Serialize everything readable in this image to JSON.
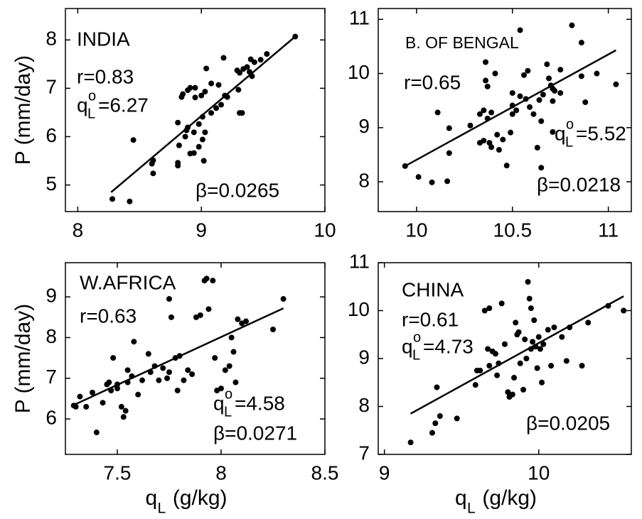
{
  "chart_data": [
    {
      "type": "scatter",
      "title": "INDIA",
      "r_text": "r=0.83",
      "q_text": {
        "base": "q",
        "sup": "o",
        "sub": "L",
        "value": "=6.27"
      },
      "beta_text": "β=0.0265",
      "ylabel": "P (mm/day)",
      "color": "#000000",
      "xlim": [
        7.9,
        10
      ],
      "xticks": [
        8,
        9,
        10
      ],
      "ylim": [
        4.45,
        8.65
      ],
      "yticks": [
        5,
        6,
        7,
        8
      ],
      "x": [
        9.76,
        9.53,
        9.48,
        9.43,
        9.4,
        9.37,
        9.34,
        9.31,
        9.39,
        9.41,
        9.29,
        9.18,
        9.04,
        9.08,
        9.14,
        9.03,
        9.0,
        8.95,
        8.91,
        8.89,
        8.85,
        8.84,
        8.95,
        9.16,
        9.3,
        9.19,
        9.21,
        9.31,
        9.33,
        9.12,
        9.08,
        9.01,
        8.98,
        8.89,
        8.88,
        8.81,
        8.82,
        8.87,
        8.94,
        9.01,
        9.03,
        8.91,
        8.94,
        8.98,
        8.81,
        8.81,
        9.02,
        8.61,
        8.61,
        8.6,
        8.45,
        8.28,
        8.42
      ],
      "values": [
        8.07,
        7.71,
        7.59,
        7.54,
        7.6,
        7.44,
        7.4,
        7.32,
        7.34,
        7.25,
        7.37,
        7.63,
        7.41,
        7.1,
        7.07,
        6.93,
        6.85,
        7.01,
        7.01,
        6.96,
        6.88,
        6.82,
        6.81,
        6.66,
        6.97,
        6.85,
        6.82,
        6.49,
        6.49,
        6.59,
        6.49,
        6.41,
        6.26,
        6.19,
        6.13,
        6.29,
        5.82,
        6.0,
        6.09,
        5.94,
        6.09,
        5.65,
        5.66,
        5.79,
        5.46,
        5.4,
        5.5,
        5.24,
        5.51,
        5.44,
        5.93,
        4.71,
        4.66
      ],
      "fit": {
        "x": [
          8.27,
          9.76
        ],
        "values": [
          4.85,
          8.07
        ]
      }
    },
    {
      "type": "scatter",
      "title": "B. OF BENGAL",
      "r_text": "r=0.65",
      "q_text": {
        "base": "q",
        "sup": "o",
        "sub": "L",
        "value": "=5.52"
      },
      "beta_text": "β=0.0218",
      "color": "#000000",
      "xlim": [
        9.8,
        11.12
      ],
      "xticks": [
        10,
        10.5,
        11
      ],
      "ylim": [
        7.45,
        11.2
      ],
      "yticks": [
        8,
        9,
        10,
        11
      ],
      "x": [
        9.94,
        10.01,
        10.08,
        10.16,
        10.11,
        10.17,
        10.17,
        10.28,
        10.33,
        10.36,
        10.36,
        10.37,
        10.41,
        10.35,
        10.37,
        10.39,
        10.33,
        10.35,
        10.38,
        10.39,
        10.42,
        10.43,
        10.45,
        10.47,
        10.49,
        10.5,
        10.5,
        10.52,
        10.5,
        10.54,
        10.57,
        10.54,
        10.56,
        10.58,
        10.59,
        10.61,
        10.63,
        10.64,
        10.65,
        10.66,
        10.68,
        10.69,
        10.7,
        10.71,
        10.72,
        10.71,
        10.65,
        10.71,
        10.75,
        10.75,
        10.81,
        10.86,
        10.86,
        10.88,
        10.94,
        11.04
      ],
      "values": [
        8.29,
        8.09,
        7.99,
        8.01,
        9.28,
        8.99,
        8.53,
        9.04,
        9.25,
        10.21,
        9.87,
        9.76,
        10.0,
        9.32,
        9.17,
        9.28,
        8.72,
        8.76,
        8.72,
        8.64,
        8.87,
        8.59,
        8.78,
        8.3,
        8.91,
        9.25,
        9.41,
        9.32,
        9.64,
        9.58,
        9.53,
        10.8,
        9.97,
        10.05,
        9.38,
        9.25,
        8.63,
        9.51,
        9.12,
        9.61,
        10.17,
        9.91,
        9.78,
        9.72,
        9.68,
        9.49,
        8.26,
        8.92,
        10.07,
        9.64,
        10.89,
        10.57,
        9.95,
        9.47,
        10.0,
        9.8
      ],
      "fit": {
        "x": [
          9.94,
          11.04
        ],
        "values": [
          8.29,
          10.43
        ]
      }
    },
    {
      "type": "scatter",
      "title": "W.AFRICA",
      "r_text": "r=0.63",
      "q_text": {
        "base": "q",
        "sup": "o",
        "sub": "L",
        "value": "=4.58"
      },
      "beta_text": "β=0.0271",
      "ylabel": "P (mm/day)",
      "xlabel": {
        "base": "q",
        "sub": "L",
        "text": " (g/kg)"
      },
      "color": "#000000",
      "xlim": [
        7.25,
        8.5
      ],
      "xticks": [
        7.5,
        8,
        8.5
      ],
      "ylim": [
        5.13,
        9.84
      ],
      "yticks": [
        6,
        7,
        8,
        9
      ],
      "x": [
        7.3,
        7.29,
        7.32,
        7.35,
        7.38,
        7.4,
        7.43,
        7.45,
        7.46,
        7.47,
        7.48,
        7.5,
        7.5,
        7.52,
        7.53,
        7.54,
        7.55,
        7.55,
        7.57,
        7.58,
        7.6,
        7.62,
        7.65,
        7.66,
        7.68,
        7.7,
        7.72,
        7.74,
        7.75,
        7.75,
        7.76,
        7.78,
        7.79,
        7.8,
        7.82,
        7.84,
        7.86,
        7.88,
        7.9,
        7.92,
        7.93,
        7.94,
        7.96,
        7.97,
        7.98,
        8.0,
        8.02,
        8.04,
        8.05,
        8.06,
        8.07,
        8.08,
        8.1,
        8.12,
        8.25,
        8.3
      ],
      "values": [
        6.3,
        6.33,
        6.55,
        6.3,
        6.65,
        5.67,
        6.4,
        6.85,
        6.9,
        6.7,
        7.5,
        6.75,
        6.85,
        6.3,
        6.05,
        6.2,
        6.9,
        7.2,
        7.05,
        7.9,
        6.6,
        6.95,
        7.6,
        7.15,
        7.3,
        6.95,
        7.25,
        7.0,
        7.15,
        8.95,
        8.5,
        7.5,
        6.7,
        7.55,
        6.95,
        7.2,
        7.1,
        8.5,
        8.55,
        9.4,
        9.45,
        8.7,
        9.4,
        7.5,
        6.7,
        6.75,
        7.2,
        7.3,
        8.0,
        7.65,
        6.9,
        8.45,
        8.35,
        8.4,
        8.2,
        8.95
      ],
      "fit": {
        "x": [
          7.28,
          8.3
        ],
        "values": [
          6.32,
          8.72
        ]
      }
    },
    {
      "type": "scatter",
      "title": "CHINA",
      "r_text": "r=0.61",
      "q_text": {
        "base": "q",
        "sup": "o",
        "sub": "L",
        "value": "=4.73"
      },
      "beta_text": "β=0.0205",
      "xlabel": {
        "base": "q",
        "sub": "L",
        "text": " (g/kg)"
      },
      "color": "#000000",
      "xlim": [
        8.96,
        10.6
      ],
      "xticks": [
        9,
        10
      ],
      "ylim": [
        7,
        11
      ],
      "yticks": [
        7,
        8,
        9,
        10,
        11
      ],
      "x": [
        9.17,
        9.31,
        9.33,
        9.34,
        9.36,
        9.47,
        9.59,
        9.6,
        9.62,
        9.65,
        9.68,
        9.67,
        9.68,
        9.7,
        9.72,
        9.73,
        9.74,
        9.76,
        9.78,
        9.8,
        9.81,
        9.83,
        9.84,
        9.85,
        9.86,
        9.87,
        9.88,
        9.9,
        9.91,
        9.92,
        9.93,
        9.94,
        9.95,
        9.95,
        9.96,
        9.97,
        9.98,
        9.99,
        10.0,
        10.01,
        10.02,
        10.03,
        10.06,
        10.08,
        10.1,
        10.15,
        10.18,
        10.2,
        10.28,
        10.32,
        10.45,
        10.55
      ],
      "values": [
        7.25,
        7.45,
        7.65,
        8.4,
        7.8,
        7.75,
        8.45,
        8.75,
        8.75,
        10.0,
        10.05,
        9.2,
        8.85,
        9.15,
        9.1,
        8.65,
        8.9,
        10.15,
        9.3,
        8.3,
        8.2,
        8.25,
        8.6,
        9.75,
        9.5,
        9.55,
        8.9,
        8.35,
        9.4,
        9.0,
        10.6,
        10.25,
        10.05,
        9.2,
        9.35,
        9.8,
        9.25,
        8.8,
        9.45,
        9.2,
        8.5,
        9.3,
        9.6,
        8.85,
        9.65,
        9.45,
        8.95,
        9.65,
        8.85,
        9.75,
        10.1,
        10.0
      ],
      "fit": {
        "x": [
          9.17,
          10.55
        ],
        "values": [
          7.85,
          10.3
        ]
      }
    }
  ]
}
